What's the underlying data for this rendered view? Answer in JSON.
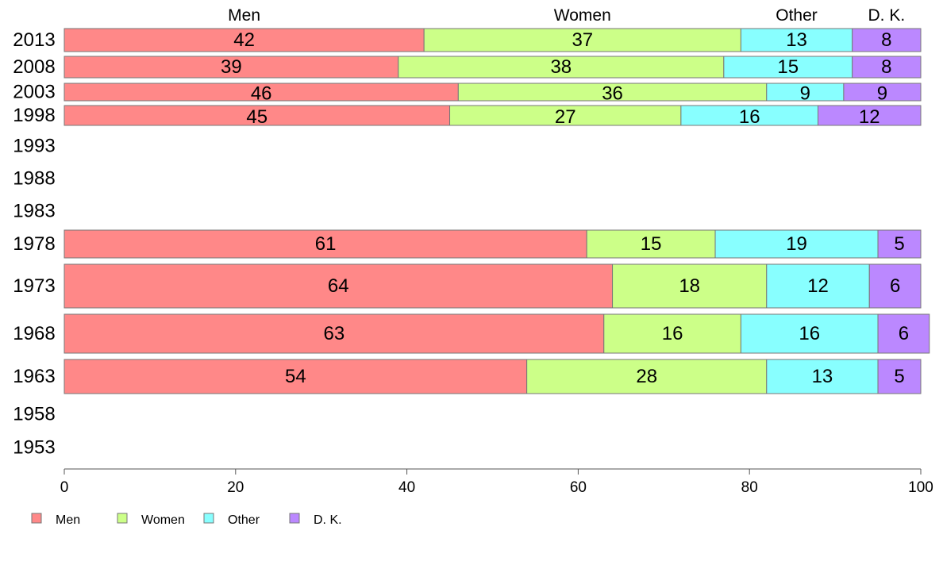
{
  "chart_data": {
    "type": "bar",
    "orientation": "horizontal",
    "stacked": true,
    "title": "",
    "xlabel": "",
    "ylabel": "",
    "xlim": [
      0,
      100
    ],
    "x_ticks": [
      "0",
      "20",
      "40",
      "60",
      "80",
      "100"
    ],
    "grid": false,
    "legend_position": "bottom-left",
    "categories": [
      "2013",
      "2008",
      "2003",
      "1998",
      "1993",
      "1988",
      "1983",
      "1978",
      "1973",
      "1968",
      "1963",
      "1958",
      "1953"
    ],
    "column_headers": [
      "Men",
      "Women",
      "Other",
      "D. K."
    ],
    "series": [
      {
        "name": "Men",
        "color": "#ff8888",
        "values": [
          42,
          39,
          46,
          45,
          null,
          null,
          null,
          61,
          64,
          63,
          54,
          null,
          null
        ]
      },
      {
        "name": "Women",
        "color": "#ccff88",
        "values": [
          37,
          38,
          36,
          27,
          null,
          null,
          null,
          15,
          18,
          16,
          28,
          null,
          null
        ]
      },
      {
        "name": "Other",
        "color": "#88ffff",
        "values": [
          13,
          15,
          9,
          16,
          null,
          null,
          null,
          19,
          12,
          16,
          13,
          null,
          null
        ]
      },
      {
        "name": "D. K.",
        "color": "#bb88ff",
        "values": [
          8,
          8,
          9,
          12,
          null,
          null,
          null,
          5,
          6,
          6,
          5,
          null,
          null
        ]
      }
    ]
  }
}
